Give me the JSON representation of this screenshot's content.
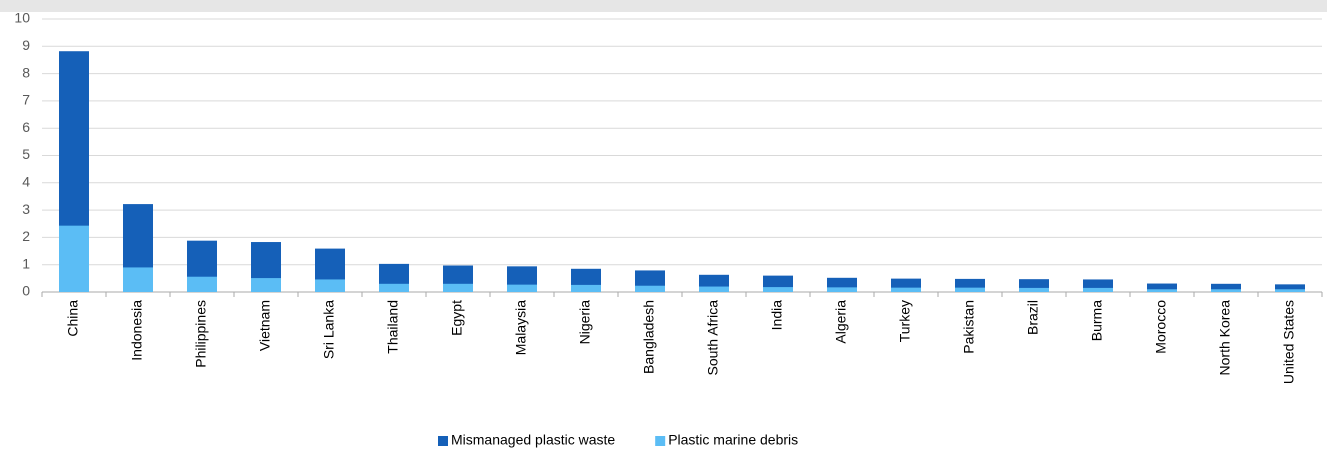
{
  "chart_data": {
    "type": "bar",
    "overlap": true,
    "categories": [
      "China",
      "Indonesia",
      "Philippines",
      "Vietnam",
      "Sri Lanka",
      "Thailand",
      "Egypt",
      "Malaysia",
      "Nigeria",
      "Bangladesh",
      "South Africa",
      "India",
      "Algeria",
      "Turkey",
      "Pakistan",
      "Brazil",
      "Burma",
      "Morocco",
      "North Korea",
      "United States"
    ],
    "series": [
      {
        "name": "Mismanaged plastic waste",
        "color": "#1560b8",
        "values": [
          8.82,
          3.22,
          1.88,
          1.83,
          1.59,
          1.03,
          0.97,
          0.94,
          0.85,
          0.79,
          0.63,
          0.6,
          0.52,
          0.49,
          0.48,
          0.47,
          0.46,
          0.31,
          0.3,
          0.28
        ]
      },
      {
        "name": "Plastic marine debris",
        "color": "#5bbdf5",
        "values": [
          2.43,
          0.9,
          0.56,
          0.51,
          0.46,
          0.3,
          0.3,
          0.27,
          0.26,
          0.23,
          0.2,
          0.18,
          0.17,
          0.16,
          0.16,
          0.15,
          0.15,
          0.1,
          0.1,
          0.1
        ]
      }
    ],
    "ylim": [
      0,
      10
    ],
    "yticks": [
      0,
      1,
      2,
      3,
      4,
      5,
      6,
      7,
      8,
      9,
      10
    ],
    "grid": true,
    "legend": "bottom"
  }
}
